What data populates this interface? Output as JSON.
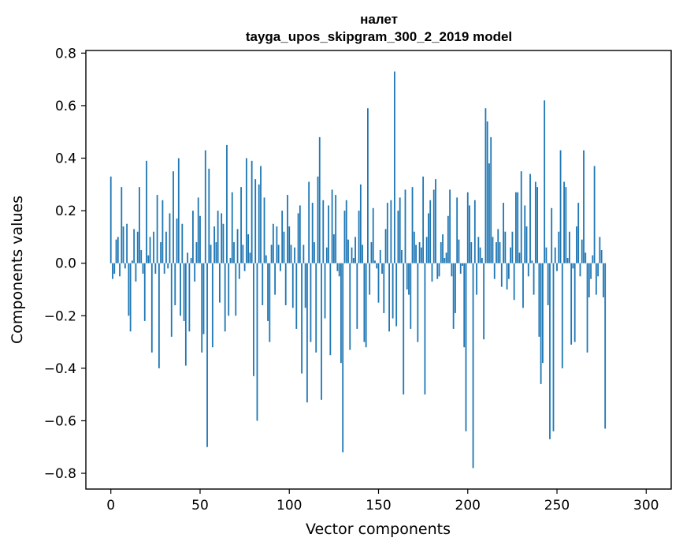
{
  "chart_data": {
    "type": "bar",
    "title_line1": "налет",
    "title_line2": "tayga_upos_skipgram_300_2_2019 model",
    "xlabel": "Vector components",
    "ylabel": "Components values",
    "xlim": [
      -14,
      314
    ],
    "ylim": [
      -0.86,
      0.81
    ],
    "x_ticks": [
      0,
      50,
      100,
      150,
      200,
      250,
      300
    ],
    "x_tick_labels": [
      "0",
      "50",
      "100",
      "150",
      "200",
      "250",
      "300"
    ],
    "y_ticks": [
      0.8,
      0.6,
      0.4,
      0.2,
      0.0,
      -0.2,
      -0.4,
      -0.6,
      -0.8
    ],
    "y_tick_labels": [
      "0.8",
      "0.6",
      "0.4",
      "0.2",
      "0.0",
      "−0.2",
      "−0.4",
      "−0.6",
      "−0.8"
    ],
    "bar_color": "#1f77b4",
    "values": [
      0.33,
      -0.06,
      -0.04,
      0.09,
      0.1,
      -0.05,
      0.29,
      0.14,
      -0.02,
      0.15,
      -0.2,
      -0.26,
      0.01,
      0.13,
      -0.07,
      0.12,
      0.29,
      0.05,
      -0.04,
      -0.22,
      0.39,
      0.03,
      0.1,
      -0.34,
      0.12,
      -0.04,
      0.26,
      -0.4,
      0.08,
      0.24,
      -0.04,
      0.12,
      -0.02,
      0.19,
      -0.28,
      0.35,
      -0.16,
      0.17,
      0.4,
      -0.2,
      0.15,
      -0.22,
      -0.39,
      0.04,
      -0.26,
      0.02,
      0.2,
      -0.07,
      0.08,
      0.25,
      0.18,
      -0.34,
      -0.27,
      0.43,
      -0.7,
      0.36,
      0.07,
      -0.32,
      0.14,
      0.08,
      0.2,
      -0.15,
      0.19,
      0.15,
      -0.26,
      0.45,
      -0.2,
      0.02,
      0.27,
      0.08,
      -0.2,
      0.13,
      -0.06,
      0.29,
      0.07,
      -0.03,
      0.4,
      0.11,
      0.04,
      0.39,
      -0.43,
      0.32,
      -0.6,
      0.3,
      0.37,
      -0.16,
      0.25,
      0.03,
      -0.22,
      -0.3,
      0.07,
      0.15,
      -0.12,
      0.14,
      0.07,
      -0.03,
      0.2,
      0.12,
      -0.16,
      0.26,
      0.14,
      0.07,
      -0.17,
      0.06,
      -0.25,
      0.19,
      0.22,
      -0.42,
      0.07,
      -0.17,
      -0.53,
      0.31,
      -0.3,
      0.23,
      0.08,
      -0.34,
      0.33,
      0.48,
      -0.52,
      0.24,
      -0.21,
      0.06,
      0.22,
      -0.35,
      0.28,
      0.11,
      0.26,
      -0.03,
      -0.05,
      -0.38,
      -0.72,
      0.2,
      0.24,
      0.09,
      -0.33,
      0.06,
      0.02,
      0.1,
      -0.25,
      0.2,
      0.3,
      0.07,
      -0.3,
      -0.32,
      0.59,
      -0.12,
      0.08,
      0.21,
      0.01,
      -0.02,
      -0.15,
      0.05,
      -0.04,
      -0.19,
      0.13,
      0.23,
      -0.26,
      0.24,
      -0.21,
      0.73,
      -0.24,
      0.2,
      0.25,
      0.05,
      -0.5,
      0.28,
      -0.1,
      -0.12,
      -0.25,
      0.29,
      0.12,
      0.07,
      -0.3,
      0.08,
      0.06,
      0.33,
      -0.5,
      0.1,
      0.19,
      0.24,
      -0.07,
      0.28,
      0.32,
      -0.06,
      -0.05,
      0.08,
      0.11,
      0.02,
      0.04,
      0.18,
      0.28,
      -0.05,
      -0.25,
      -0.19,
      0.25,
      0.09,
      -0.04,
      -0.01,
      -0.32,
      -0.64,
      0.27,
      0.22,
      0.08,
      -0.78,
      0.24,
      -0.12,
      0.1,
      0.06,
      0.02,
      -0.29,
      0.59,
      0.54,
      0.38,
      0.48,
      0.1,
      -0.06,
      0.08,
      0.13,
      0.08,
      -0.09,
      0.23,
      0.12,
      -0.1,
      -0.06,
      0.06,
      0.12,
      -0.14,
      0.27,
      0.27,
      0.04,
      0.35,
      -0.17,
      0.22,
      0.14,
      -0.05,
      0.34,
      0.01,
      -0.12,
      0.31,
      0.29,
      -0.28,
      -0.46,
      -0.38,
      0.62,
      0.06,
      -0.16,
      -0.67,
      0.21,
      -0.64,
      0.06,
      -0.03,
      0.12,
      0.43,
      -0.4,
      0.31,
      0.29,
      0.02,
      0.12,
      -0.31,
      -0.02,
      -0.3,
      0.14,
      0.23,
      -0.05,
      0.09,
      0.43,
      0.04,
      -0.34,
      -0.13,
      -0.06,
      0.03,
      0.37,
      -0.12,
      -0.05,
      0.1,
      0.05,
      -0.13,
      -0.63
    ]
  }
}
